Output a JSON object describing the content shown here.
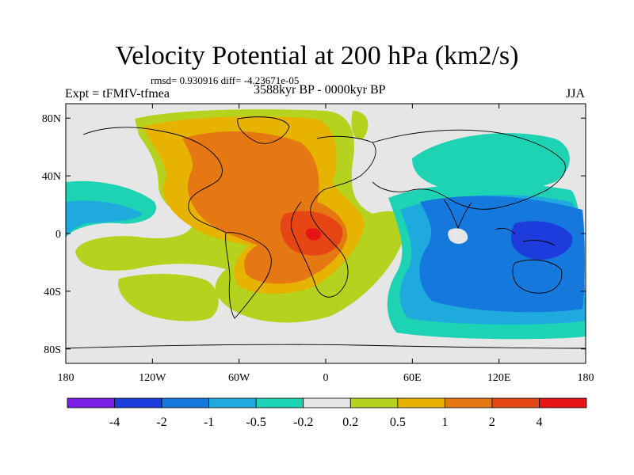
{
  "title": "Velocity Potential at 200 hPa (km2/s)",
  "stats": "rmsd= 0.930916 diff= -4.23671e-05",
  "left_label": "Expt = tFMfV-tfmea",
  "center_label": "3588kyr BP - 0000kyr BP",
  "right_label": "JJA",
  "map": {
    "lon_range": [
      -180,
      180
    ],
    "lat_range": [
      -90,
      90
    ],
    "x_ticks": [
      {
        "lon": -180,
        "label": "180"
      },
      {
        "lon": -120,
        "label": "120W"
      },
      {
        "lon": -60,
        "label": "60W"
      },
      {
        "lon": 0,
        "label": "0"
      },
      {
        "lon": 60,
        "label": "60E"
      },
      {
        "lon": 120,
        "label": "120E"
      },
      {
        "lon": 180,
        "label": "180"
      }
    ],
    "y_ticks": [
      {
        "lat": 80,
        "label": "80N"
      },
      {
        "lat": 40,
        "label": "40N"
      },
      {
        "lat": 0,
        "label": "0"
      },
      {
        "lat": -40,
        "label": "40S"
      },
      {
        "lat": -80,
        "label": "80S"
      }
    ],
    "background_color": "#e6e6e6"
  },
  "colorbar": {
    "colors": [
      "#7a1ee6",
      "#1e3cdc",
      "#1478dc",
      "#1eaadc",
      "#1ed2b4",
      "#e6e6e6",
      "#b4d21e",
      "#e6b400",
      "#e67814",
      "#e64614",
      "#e61414"
    ],
    "labels": [
      "-4",
      "-2",
      "-1",
      "-0.5",
      "-0.2",
      "0.2",
      "0.5",
      "1",
      "2",
      "4"
    ]
  }
}
